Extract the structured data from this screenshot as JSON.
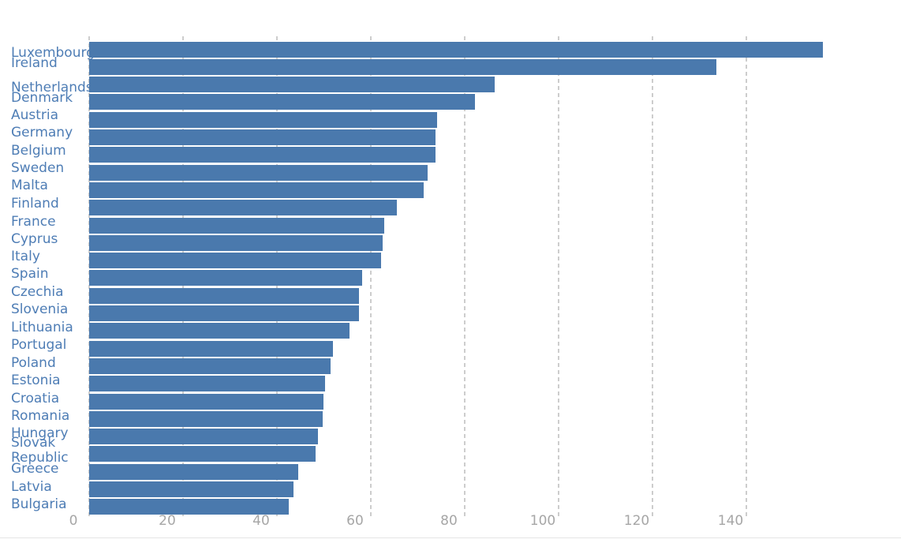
{
  "chart_data": {
    "type": "bar",
    "orientation": "horizontal",
    "title": "",
    "xlabel": "",
    "ylabel": "",
    "categories": [
      "Luxembourg",
      "Ireland",
      "Netherlands",
      "Denmark",
      "Austria",
      "Germany",
      "Belgium",
      "Sweden",
      "Malta",
      "Finland",
      "France",
      "Cyprus",
      "Italy",
      "Spain",
      "Czechia",
      "Slovenia",
      "Lithuania",
      "Portugal",
      "Poland",
      "Estonia",
      "Croatia",
      "Romania",
      "Hungary",
      "Slovak Republic",
      "Greece",
      "Latvia",
      "Bulgaria"
    ],
    "values": [
      156.3,
      133.6,
      86.4,
      82.2,
      74.1,
      73.8,
      73.7,
      72.1,
      71.3,
      65.5,
      62.9,
      62.5,
      62.2,
      58.2,
      57.5,
      57.4,
      55.5,
      51.9,
      51.4,
      50.3,
      49.9,
      49.7,
      48.7,
      48.2,
      44.5,
      43.5,
      42.5
    ],
    "xlim": [
      0,
      160
    ],
    "xticks": [
      0,
      20,
      40,
      60,
      80,
      100,
      120,
      140
    ],
    "grid": "vertical-dashed",
    "legend": "none",
    "colors": {
      "bar": "#4a79ad",
      "category_label": "#4e7db5",
      "tick_label": "#a6a6a6",
      "gridline": "#cdcdcd",
      "bottom_divider": "#e4e4e4",
      "background": "#ffffff"
    }
  }
}
